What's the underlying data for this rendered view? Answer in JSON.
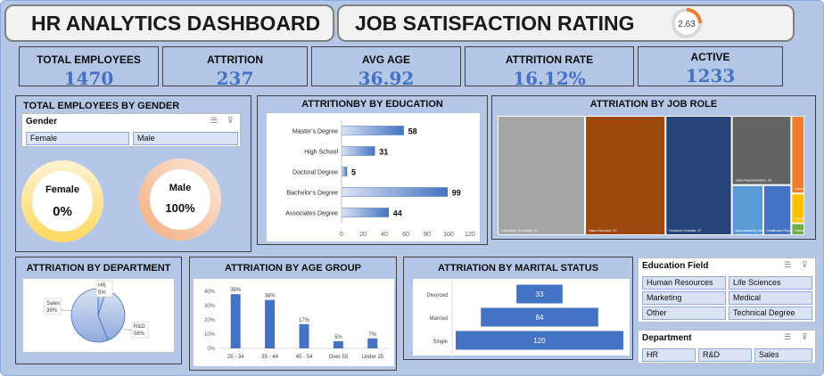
{
  "header": {
    "title": "HR ANALYTICS DASHBOARD",
    "satisfaction_label": "JOB SATISFACTION RATING",
    "satisfaction_value": "2.63"
  },
  "kpis": [
    {
      "label": "TOTAL  EMPLOYEES",
      "value": "1470"
    },
    {
      "label": "ATTRITION",
      "value": "237"
    },
    {
      "label": "AVG AGE",
      "value": "36.92"
    },
    {
      "label": "ATTRITION RATE",
      "value": "16.12%"
    },
    {
      "label": "ACTIVE",
      "value": "1233"
    }
  ],
  "gender_panel": {
    "title": "TOTAL  EMPLOYEES BY GENDER",
    "slicer_title": "Gender",
    "options": [
      "Female",
      "Male"
    ],
    "female_label": "Female",
    "female_value": "0%",
    "male_label": "Male",
    "male_value": "100%",
    "female_pct": 0,
    "male_pct": 100
  },
  "education_chart": {
    "title": "ATTRITIONBY BY EDUCATION",
    "chart_data": {
      "type": "bar",
      "orientation": "horizontal",
      "categories": [
        "Master's Degree",
        "High School",
        "Doctoral Degree",
        "Bachelor's Degree",
        "Associates Degree"
      ],
      "values": [
        58,
        31,
        5,
        99,
        44
      ],
      "xlim": [
        0,
        120
      ],
      "xticks": [
        "0",
        "20",
        "40",
        "60",
        "80",
        "100",
        "120"
      ]
    }
  },
  "jobrole_chart": {
    "title": "ATTRIATION BY JOB ROLE",
    "chart_data": {
      "type": "treemap",
      "items": [
        {
          "label": "Laboratory Technician, 62",
          "value": 62,
          "color": "#a5a5a5"
        },
        {
          "label": "Sales Executive, 57",
          "value": 57,
          "color": "#9e480e"
        },
        {
          "label": "Research Scientist, 47",
          "value": 47,
          "color": "#264478"
        },
        {
          "label": "Sales Representative, 33",
          "value": 33,
          "color": "#636363"
        },
        {
          "label": "Manufacturing Director, 10",
          "value": 10,
          "color": "#5b9bd5"
        },
        {
          "label": "Healthcare Representative, 9",
          "value": 9,
          "color": "#4472c4"
        },
        {
          "label": "Human Resources, 12",
          "value": 12,
          "color": "#ed7d31"
        },
        {
          "label": "Manager, 5",
          "value": 5,
          "color": "#ffc000"
        },
        {
          "label": "Resear...",
          "value": 2,
          "color": "#70ad47"
        }
      ]
    }
  },
  "department_chart": {
    "title": "ATTRIATION BY DEPARTMENT",
    "chart_data": {
      "type": "pie",
      "categories": [
        "HR",
        "Sales",
        "R&D"
      ],
      "values": [
        5,
        39,
        56
      ],
      "labels": [
        "HR 5%",
        "Sales 39%",
        "R&D 56%"
      ]
    }
  },
  "age_chart": {
    "title": "ATTRIATION BY AGE GROUP",
    "chart_data": {
      "type": "bar",
      "categories": [
        "25 - 34",
        "35 - 44",
        "45 - 54",
        "Over 55",
        "Under 25"
      ],
      "values": [
        38,
        34,
        17,
        5,
        7
      ],
      "value_labels": [
        "38%",
        "34%",
        "17%",
        "5%",
        "7%"
      ],
      "ylim": [
        0,
        40
      ],
      "yticks": [
        "0%",
        "10%",
        "20%",
        "30%",
        "40%"
      ]
    }
  },
  "marital_chart": {
    "title": "ATTRIATION BY MARITAL STATUS",
    "chart_data": {
      "type": "bar",
      "orientation": "horizontal-funnel",
      "categories": [
        "Divorced",
        "Married",
        "Single"
      ],
      "values": [
        33,
        84,
        120
      ]
    }
  },
  "education_slicer": {
    "title": "Education Field",
    "options": [
      "Human Resources",
      "Life Sciences",
      "Marketing",
      "Medical",
      "Other",
      "Technical Degree"
    ]
  },
  "department_slicer": {
    "title": "Department",
    "options": [
      "HR",
      "R&D",
      "Sales"
    ]
  },
  "icons": [
    "multi-select-icon",
    "clear-filter-icon"
  ]
}
